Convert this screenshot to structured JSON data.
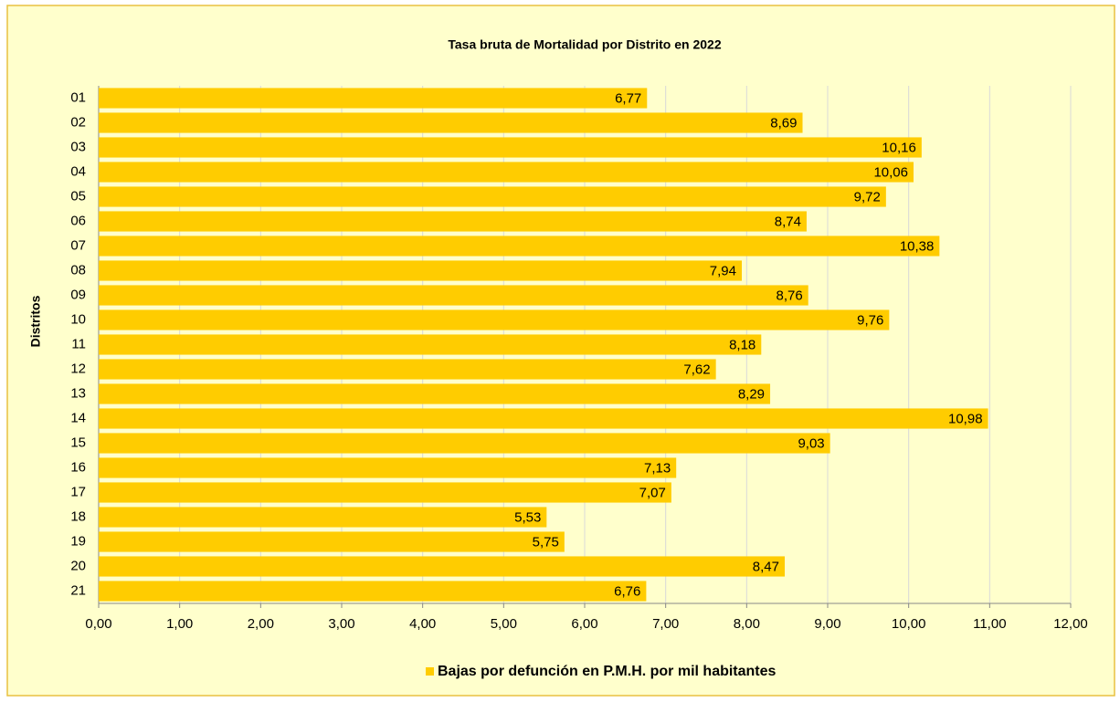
{
  "chart_data": {
    "type": "barh",
    "title": "Tasa bruta de Mortalidad por Distrito en 2022",
    "y_label": "Distritos",
    "categories": [
      "01",
      "02",
      "03",
      "04",
      "05",
      "06",
      "07",
      "08",
      "09",
      "10",
      "11",
      "12",
      "13",
      "14",
      "15",
      "16",
      "17",
      "18",
      "19",
      "20",
      "21"
    ],
    "series": [
      {
        "name": "Bajas por defunción en P.M.H. por mil habitantes",
        "color": "#ffcc00",
        "values": [
          6.77,
          8.69,
          10.16,
          10.06,
          9.72,
          8.74,
          10.38,
          7.94,
          8.76,
          9.76,
          8.18,
          7.62,
          8.29,
          10.98,
          9.03,
          7.13,
          7.07,
          5.53,
          5.75,
          8.47,
          6.76
        ],
        "value_labels": [
          "6,77",
          "8,69",
          "10,16",
          "10,06",
          "9,72",
          "8,74",
          "10,38",
          "7,94",
          "8,76",
          "9,76",
          "8,18",
          "7,62",
          "8,29",
          "10,98",
          "9,03",
          "7,13",
          "7,07",
          "5,53",
          "5,75",
          "8,47",
          "6,76"
        ]
      }
    ],
    "xlim": [
      0,
      12
    ],
    "xticks": [
      {
        "value": 0,
        "label": "0,00"
      },
      {
        "value": 1,
        "label": "1,00"
      },
      {
        "value": 2,
        "label": "2,00"
      },
      {
        "value": 3,
        "label": "3,00"
      },
      {
        "value": 4,
        "label": "4,00"
      },
      {
        "value": 5,
        "label": "5,00"
      },
      {
        "value": 6,
        "label": "6,00"
      },
      {
        "value": 7,
        "label": "7,00"
      },
      {
        "value": 8,
        "label": "8,00"
      },
      {
        "value": 9,
        "label": "9,00"
      },
      {
        "value": 10,
        "label": "10,00"
      },
      {
        "value": 11,
        "label": "11,00"
      },
      {
        "value": 12,
        "label": "12,00"
      }
    ],
    "grid": true,
    "legend": "bottom"
  }
}
